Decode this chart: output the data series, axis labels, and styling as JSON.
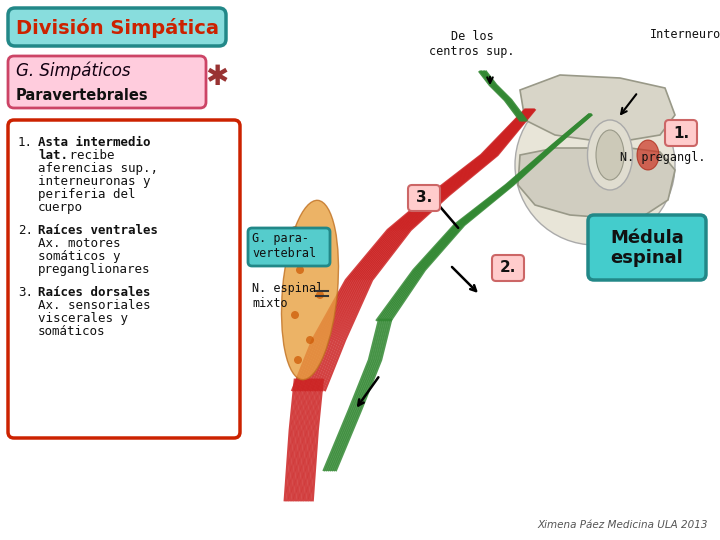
{
  "title": "División Simpática",
  "title_color": "#cc2200",
  "title_bg": "#88dddd",
  "title_border": "#228888",
  "subtitle_text": "G. Simpáticos",
  "subtitle_subtext": "Paravertebrales",
  "subtitle_bg": "#ffccdd",
  "subtitle_border": "#cc4466",
  "list_border": "#cc2200",
  "list_bg": "#ffffff",
  "label_g_para": "G. para-\nvertebral",
  "label_g_para_bg": "#55cccc",
  "label_g_para_border": "#228888",
  "label_n_espinal": "N. espinal\nmixto",
  "label_centros": "De los\ncentros sup.",
  "label_interneurona": "Interneurona",
  "label_npregangl": "N. pregangl.",
  "label_medula": "Médula\nespinal",
  "label_medula_bg": "#44cccc",
  "label_medula_border": "#228888",
  "credit": "Ximena Páez Medicina ULA 2013",
  "bg_color": "#ffffff",
  "star_color": "#993333",
  "red_nerve": "#cc2222",
  "green_nerve": "#338833",
  "pink_box_bg": "#ffcccc",
  "pink_box_border": "#cc6666"
}
